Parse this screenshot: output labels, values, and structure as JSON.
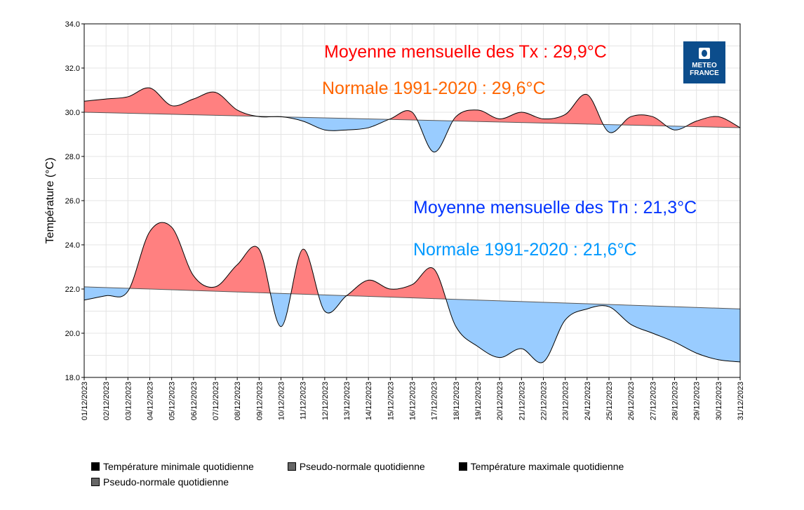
{
  "chart_data": {
    "type": "area",
    "ylabel": "Température (°C)",
    "xlabel": "",
    "ylim": [
      18.0,
      34.0
    ],
    "y_ticks": [
      "18.0",
      "20.0",
      "22.0",
      "24.0",
      "26.0",
      "28.0",
      "30.0",
      "32.0",
      "34.0"
    ],
    "grid": true,
    "categories": [
      "01/12/2023",
      "02/12/2023",
      "03/12/2023",
      "04/12/2023",
      "05/12/2023",
      "06/12/2023",
      "07/12/2023",
      "08/12/2023",
      "09/12/2023",
      "10/12/2023",
      "11/12/2023",
      "12/12/2023",
      "13/12/2023",
      "14/12/2023",
      "15/12/2023",
      "16/12/2023",
      "17/12/2023",
      "18/12/2023",
      "19/12/2023",
      "20/12/2023",
      "21/12/2023",
      "22/12/2023",
      "23/12/2023",
      "24/12/2023",
      "25/12/2023",
      "26/12/2023",
      "27/12/2023",
      "28/12/2023",
      "29/12/2023",
      "30/12/2023",
      "31/12/2023"
    ],
    "series": [
      {
        "name": "Température maximale quotidienne",
        "values": [
          30.5,
          30.6,
          30.7,
          31.1,
          30.3,
          30.6,
          30.9,
          30.1,
          29.8,
          29.8,
          29.6,
          29.2,
          29.2,
          29.3,
          29.7,
          30.0,
          28.2,
          29.8,
          30.1,
          29.7,
          30.0,
          29.7,
          29.9,
          30.8,
          29.1,
          29.8,
          29.8,
          29.2,
          29.6,
          29.8,
          29.3
        ]
      },
      {
        "name": "Pseudo-normale quotidienne",
        "role": "normal_tx",
        "start": 30.0,
        "end": 29.3
      },
      {
        "name": "Température minimale quotidienne",
        "values": [
          21.5,
          21.7,
          21.9,
          24.6,
          24.8,
          22.6,
          22.1,
          23.1,
          23.8,
          20.3,
          23.8,
          21.0,
          21.7,
          22.4,
          22.0,
          22.2,
          22.9,
          20.3,
          19.4,
          18.9,
          19.3,
          18.7,
          20.6,
          21.1,
          21.2,
          20.4,
          20.0,
          19.6,
          19.1,
          18.8,
          18.7
        ]
      },
      {
        "name": "Pseudo-normale quotidienne",
        "role": "normal_tn",
        "start": 22.1,
        "end": 21.1
      }
    ],
    "annotations": {
      "tx_mean": "Moyenne mensuelle des Tx : 29,9°C",
      "tx_normal": "Normale 1991-2020 : 29,6°C",
      "tn_mean": "Moyenne mensuelle des Tn : 21,3°C",
      "tn_normal": "Normale 1991-2020 : 21,6°C"
    },
    "colors": {
      "above": "#ff8080",
      "below": "#99ccff",
      "tx_mean": "#ff0000",
      "tx_normal": "#ff6600",
      "tn_mean": "#0033ff",
      "tn_normal": "#0099ff"
    },
    "legend_position": "bottom",
    "legend": [
      {
        "label": "Température minimale quotidienne",
        "color": "#000000"
      },
      {
        "label": "Pseudo-normale quotidienne",
        "color": "#666666"
      },
      {
        "label": "Température maximale quotidienne",
        "color": "#000000"
      },
      {
        "label": "Pseudo-normale quotidienne",
        "color": "#666666"
      }
    ]
  },
  "logo": {
    "line1": "METEO",
    "line2": "FRANCE"
  }
}
